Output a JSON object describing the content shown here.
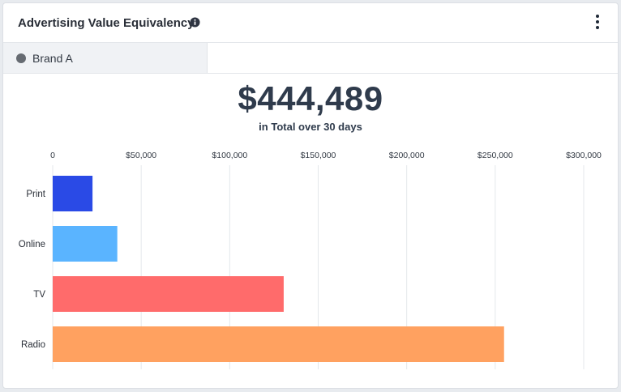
{
  "widget": {
    "title": "Advertising Value Equivalency",
    "info_icon": "info-icon",
    "menu_icon": "kebab-menu-icon"
  },
  "brand_tab": {
    "label": "Brand A",
    "dot_color": "#666b72"
  },
  "summary": {
    "total": "$444,489",
    "caption": "in Total over 30 days"
  },
  "chart_data": {
    "type": "bar",
    "orientation": "horizontal",
    "title": "",
    "xlabel": "",
    "ylabel": "",
    "xlim": [
      0,
      300000
    ],
    "grid": true,
    "x_ticks": [
      0,
      50000,
      100000,
      150000,
      200000,
      250000,
      300000
    ],
    "x_tick_labels": [
      "0",
      "$50,000",
      "$100,000",
      "$150,000",
      "$200,000",
      "$250,000",
      "$300,000"
    ],
    "categories": [
      "Print",
      "Online",
      "TV",
      "Radio"
    ],
    "values": [
      22500,
      36500,
      130500,
      255000
    ],
    "colors": [
      "#2a4ae6",
      "#5ab4ff",
      "#ff6b6b",
      "#ffa160"
    ]
  }
}
